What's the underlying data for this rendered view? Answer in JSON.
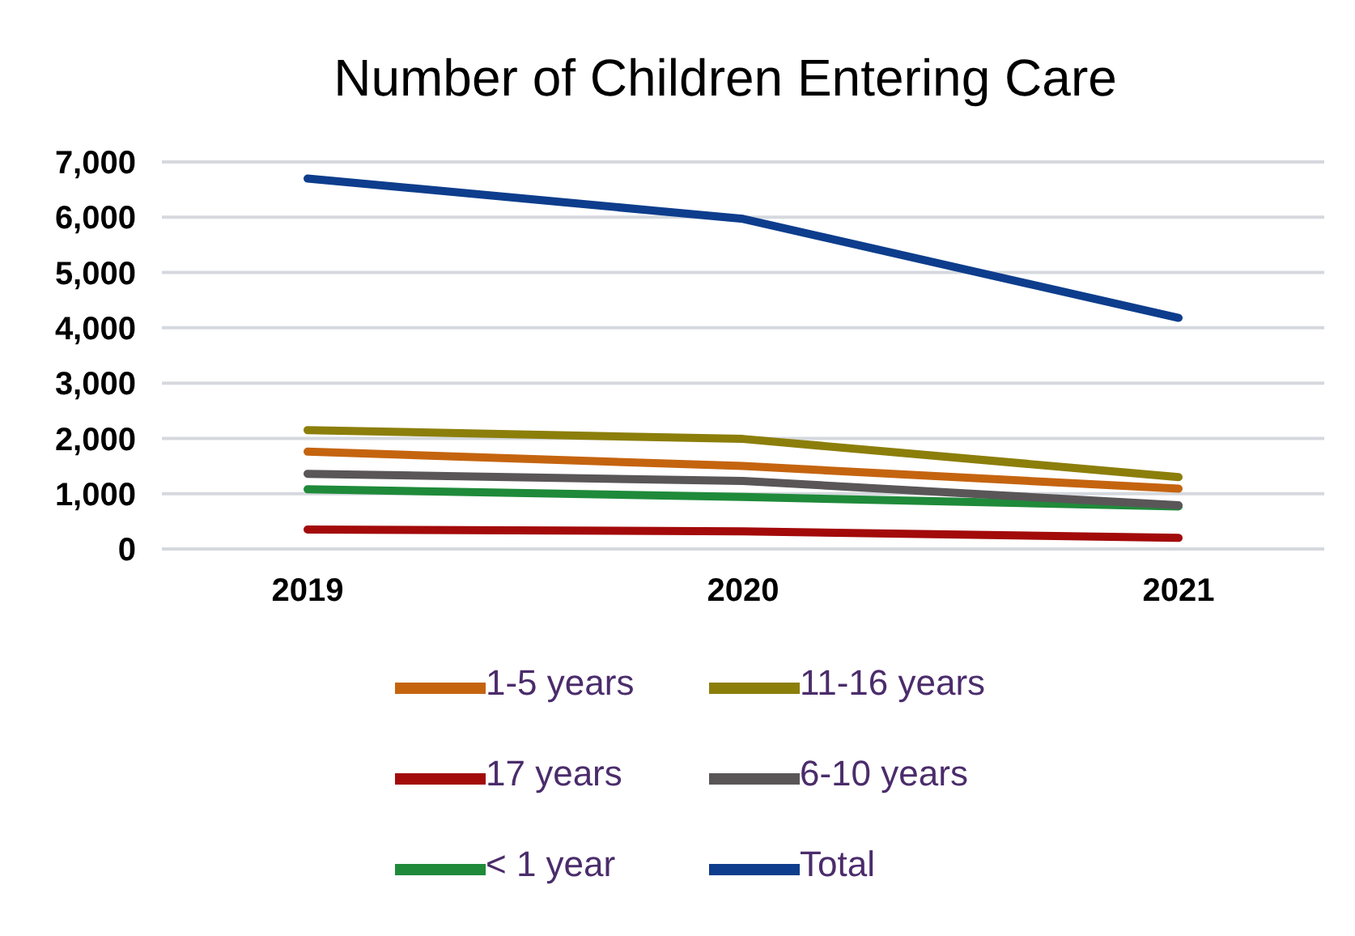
{
  "chart_data": {
    "type": "line",
    "title": "Number of Children Entering Care",
    "categories": [
      "2019",
      "2020",
      "2021"
    ],
    "series": [
      {
        "name": "Total",
        "color": "#0d3d8c",
        "values": [
          6700,
          5970,
          4180
        ]
      },
      {
        "name": "< 1 year",
        "color": "#1f8a3a",
        "values": [
          1080,
          940,
          770
        ]
      },
      {
        "name": "1-5 years",
        "color": "#c5640f",
        "values": [
          1760,
          1500,
          1090
        ]
      },
      {
        "name": "6-10 years",
        "color": "#5a5658",
        "values": [
          1360,
          1230,
          790
        ]
      },
      {
        "name": "11-16 years",
        "color": "#8c7e0a",
        "values": [
          2150,
          1990,
          1300
        ]
      },
      {
        "name": "17 years",
        "color": "#a30a0a",
        "values": [
          350,
          320,
          200
        ]
      }
    ],
    "ylim": [
      0,
      7000
    ],
    "yticks": [
      {
        "value": 0,
        "label": "0"
      },
      {
        "value": 1000,
        "label": "1,000"
      },
      {
        "value": 2000,
        "label": "2,000"
      },
      {
        "value": 3000,
        "label": "3,000"
      },
      {
        "value": 4000,
        "label": "4,000"
      },
      {
        "value": 5000,
        "label": "5,000"
      },
      {
        "value": 6000,
        "label": "6,000"
      },
      {
        "value": 7000,
        "label": "7,000"
      }
    ],
    "grid": "y",
    "legend": "bottom",
    "marker": "none",
    "line_style": "solid"
  }
}
